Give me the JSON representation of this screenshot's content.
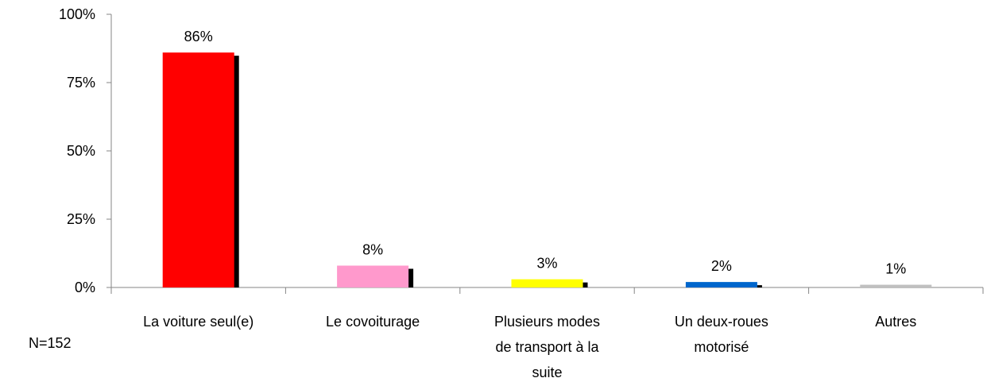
{
  "chart_data": {
    "type": "bar",
    "categories": [
      "La voiture seul(e)",
      "Le covoiturage",
      "Plusieurs modes de transport à la suite",
      "Un deux-roues motorisé",
      "Autres"
    ],
    "values": [
      86,
      8,
      3,
      2,
      1
    ],
    "value_labels": [
      "86%",
      "8%",
      "3%",
      "2%",
      "1%"
    ],
    "colors": [
      "#ff0000",
      "#ff99cc",
      "#ffff00",
      "#0066cc",
      "#c0c0c0"
    ],
    "shadow_color": "#000000",
    "ylim": [
      0,
      100
    ],
    "yticks": [
      {
        "value": 0,
        "label": "0%"
      },
      {
        "value": 25,
        "label": "25%"
      },
      {
        "value": 50,
        "label": "50%"
      },
      {
        "value": 75,
        "label": "75%"
      },
      {
        "value": 100,
        "label": "100%"
      }
    ],
    "annotation": "N=152"
  }
}
